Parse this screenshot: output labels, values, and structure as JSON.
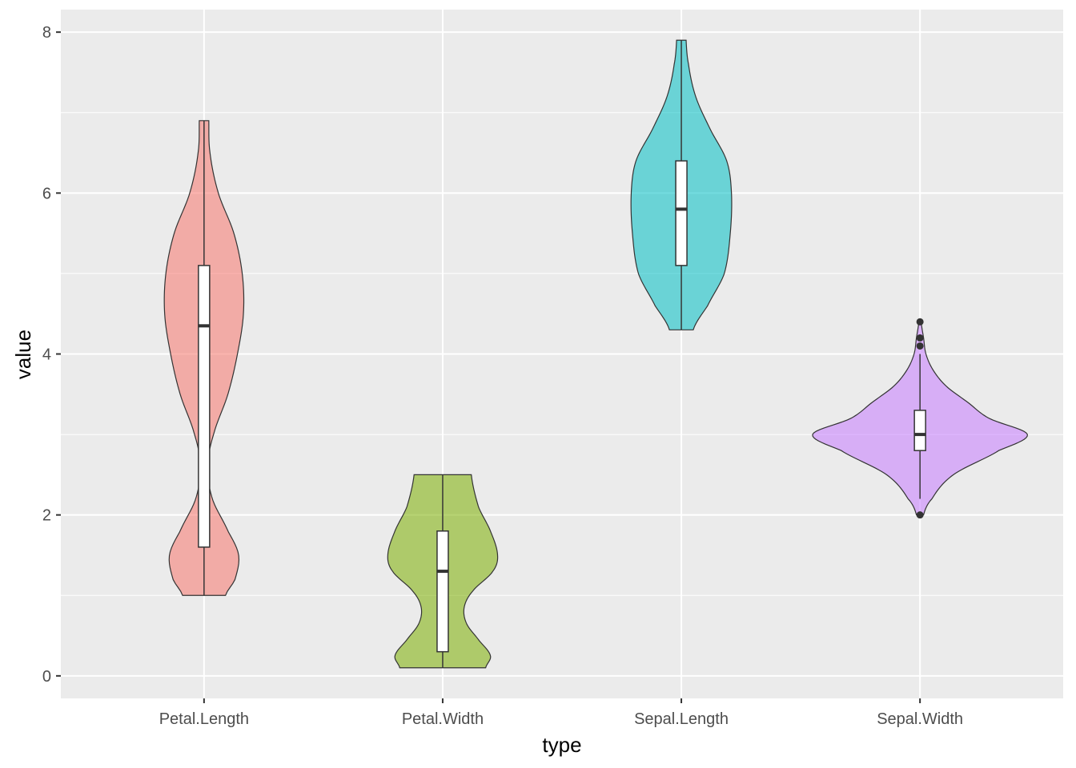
{
  "chart_data": {
    "type": "violin",
    "title": "",
    "xlabel": "type",
    "ylabel": "value",
    "ylim": [
      -0.28,
      8.28
    ],
    "yticks": [
      0,
      2,
      4,
      6,
      8
    ],
    "grid": true,
    "legend": "none",
    "categories": [
      "Petal.Length",
      "Petal.Width",
      "Sepal.Length",
      "Sepal.Width"
    ],
    "series": [
      {
        "category": "Petal.Length",
        "color": "#F8766D",
        "min": 1.0,
        "q1": 1.6,
        "median": 4.35,
        "q3": 5.1,
        "max": 6.9,
        "outliers": [],
        "density": [
          [
            1.0,
            0.18
          ],
          [
            1.2,
            0.26
          ],
          [
            1.5,
            0.29
          ],
          [
            1.8,
            0.2
          ],
          [
            2.2,
            0.07
          ],
          [
            2.6,
            0.03
          ],
          [
            3.0,
            0.08
          ],
          [
            3.5,
            0.2
          ],
          [
            4.0,
            0.28
          ],
          [
            4.5,
            0.33
          ],
          [
            5.0,
            0.32
          ],
          [
            5.5,
            0.25
          ],
          [
            6.0,
            0.12
          ],
          [
            6.5,
            0.05
          ],
          [
            6.9,
            0.04
          ]
        ]
      },
      {
        "category": "Petal.Width",
        "color": "#7CAE00",
        "min": 0.1,
        "q1": 0.3,
        "median": 1.3,
        "q3": 1.8,
        "max": 2.5,
        "outliers": [],
        "density": [
          [
            0.1,
            0.36
          ],
          [
            0.25,
            0.4
          ],
          [
            0.45,
            0.3
          ],
          [
            0.65,
            0.2
          ],
          [
            0.85,
            0.18
          ],
          [
            1.05,
            0.25
          ],
          [
            1.3,
            0.42
          ],
          [
            1.5,
            0.46
          ],
          [
            1.8,
            0.4
          ],
          [
            2.1,
            0.3
          ],
          [
            2.5,
            0.24
          ]
        ]
      },
      {
        "category": "Sepal.Length",
        "color": "#00BFC4",
        "min": 4.3,
        "q1": 5.1,
        "median": 5.8,
        "q3": 6.4,
        "max": 7.9,
        "outliers": [],
        "density": [
          [
            4.3,
            0.1
          ],
          [
            4.6,
            0.22
          ],
          [
            5.0,
            0.36
          ],
          [
            5.5,
            0.41
          ],
          [
            6.0,
            0.42
          ],
          [
            6.4,
            0.38
          ],
          [
            6.8,
            0.24
          ],
          [
            7.2,
            0.12
          ],
          [
            7.6,
            0.06
          ],
          [
            7.9,
            0.04
          ]
        ]
      },
      {
        "category": "Sepal.Width",
        "color": "#C77CFF",
        "min": 2.2,
        "q1": 2.8,
        "median": 3.0,
        "q3": 3.3,
        "max": 4.0,
        "outliers": [
          2.0,
          4.1,
          4.2,
          4.4
        ],
        "density": [
          [
            2.0,
            0.03
          ],
          [
            2.2,
            0.1
          ],
          [
            2.5,
            0.28
          ],
          [
            2.8,
            0.66
          ],
          [
            3.0,
            0.9
          ],
          [
            3.2,
            0.58
          ],
          [
            3.4,
            0.4
          ],
          [
            3.6,
            0.22
          ],
          [
            3.8,
            0.11
          ],
          [
            4.0,
            0.05
          ],
          [
            4.2,
            0.03
          ],
          [
            4.4,
            0.01
          ]
        ]
      }
    ]
  }
}
